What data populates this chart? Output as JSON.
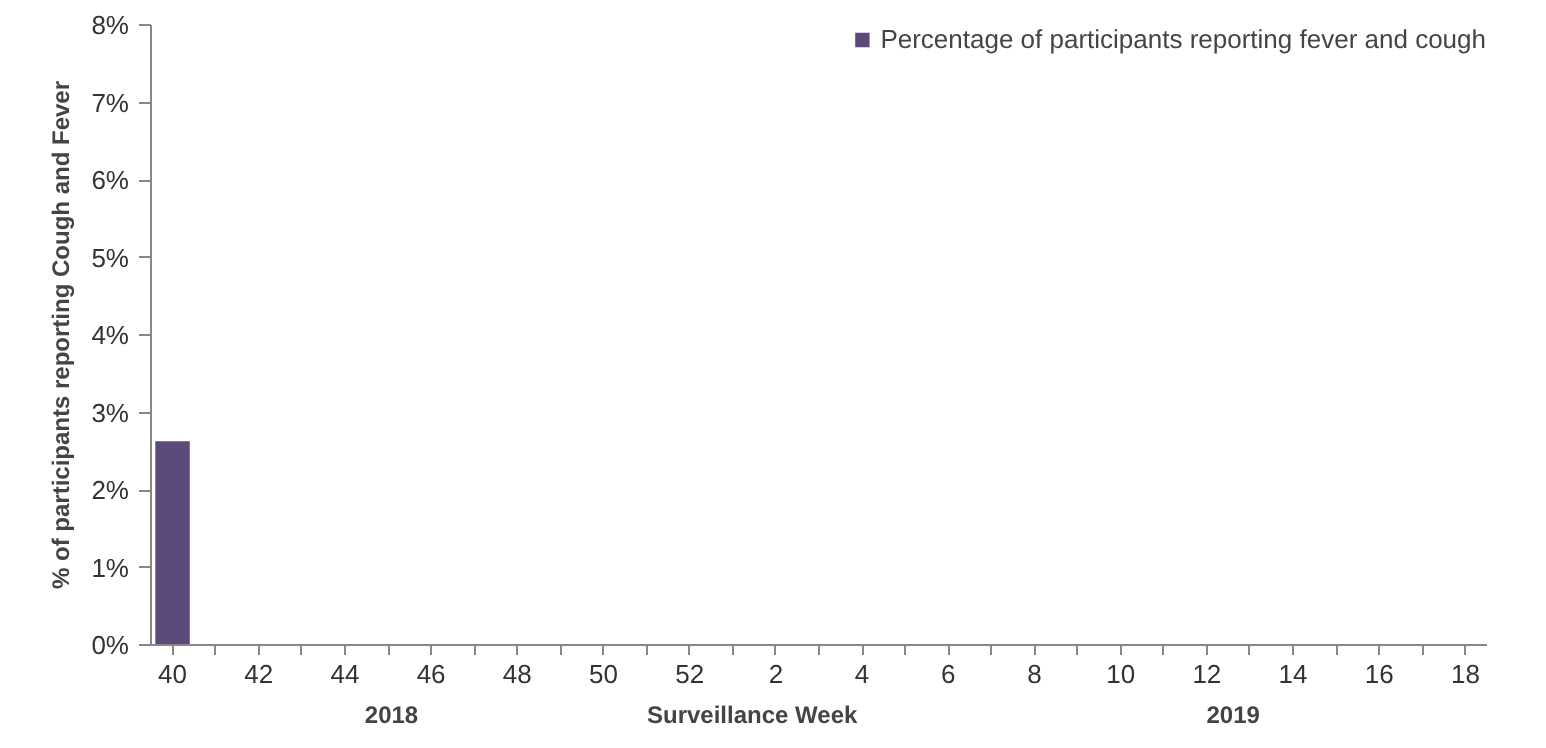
{
  "chart_data": {
    "type": "bar",
    "xlabel": "Surveillance Week",
    "ylabel": "% of participants reporting Cough and Fever",
    "categories": [
      "40",
      null,
      "42",
      null,
      "44",
      null,
      "46",
      null,
      "48",
      null,
      "50",
      null,
      "52",
      null,
      "2",
      null,
      "4",
      null,
      "6",
      null,
      "8",
      null,
      "10",
      null,
      "12",
      null,
      "14",
      null,
      "16",
      null,
      "18"
    ],
    "series": [
      {
        "name": "Percentage of participants reporting fever and cough",
        "color": "#5b4a7a",
        "values": [
          2.63,
          null,
          null,
          null,
          null,
          null,
          null,
          null,
          null,
          null,
          null,
          null,
          null,
          null,
          null,
          null,
          null,
          null,
          null,
          null,
          null,
          null,
          null,
          null,
          null,
          null,
          null,
          null,
          null,
          null,
          null
        ]
      }
    ],
    "ylim": [
      0,
      8
    ],
    "yticks": [
      {
        "value": 0,
        "label": "0%"
      },
      {
        "value": 1,
        "label": "1%"
      },
      {
        "value": 2,
        "label": "2%"
      },
      {
        "value": 3,
        "label": "3%"
      },
      {
        "value": 4,
        "label": "4%"
      },
      {
        "value": 5,
        "label": "5%"
      },
      {
        "value": 6,
        "label": "6%"
      },
      {
        "value": 7,
        "label": "7%"
      },
      {
        "value": 8,
        "label": "8%"
      }
    ],
    "annotations": [
      "2018",
      "2019"
    ],
    "legend": "top right",
    "grid": false
  }
}
